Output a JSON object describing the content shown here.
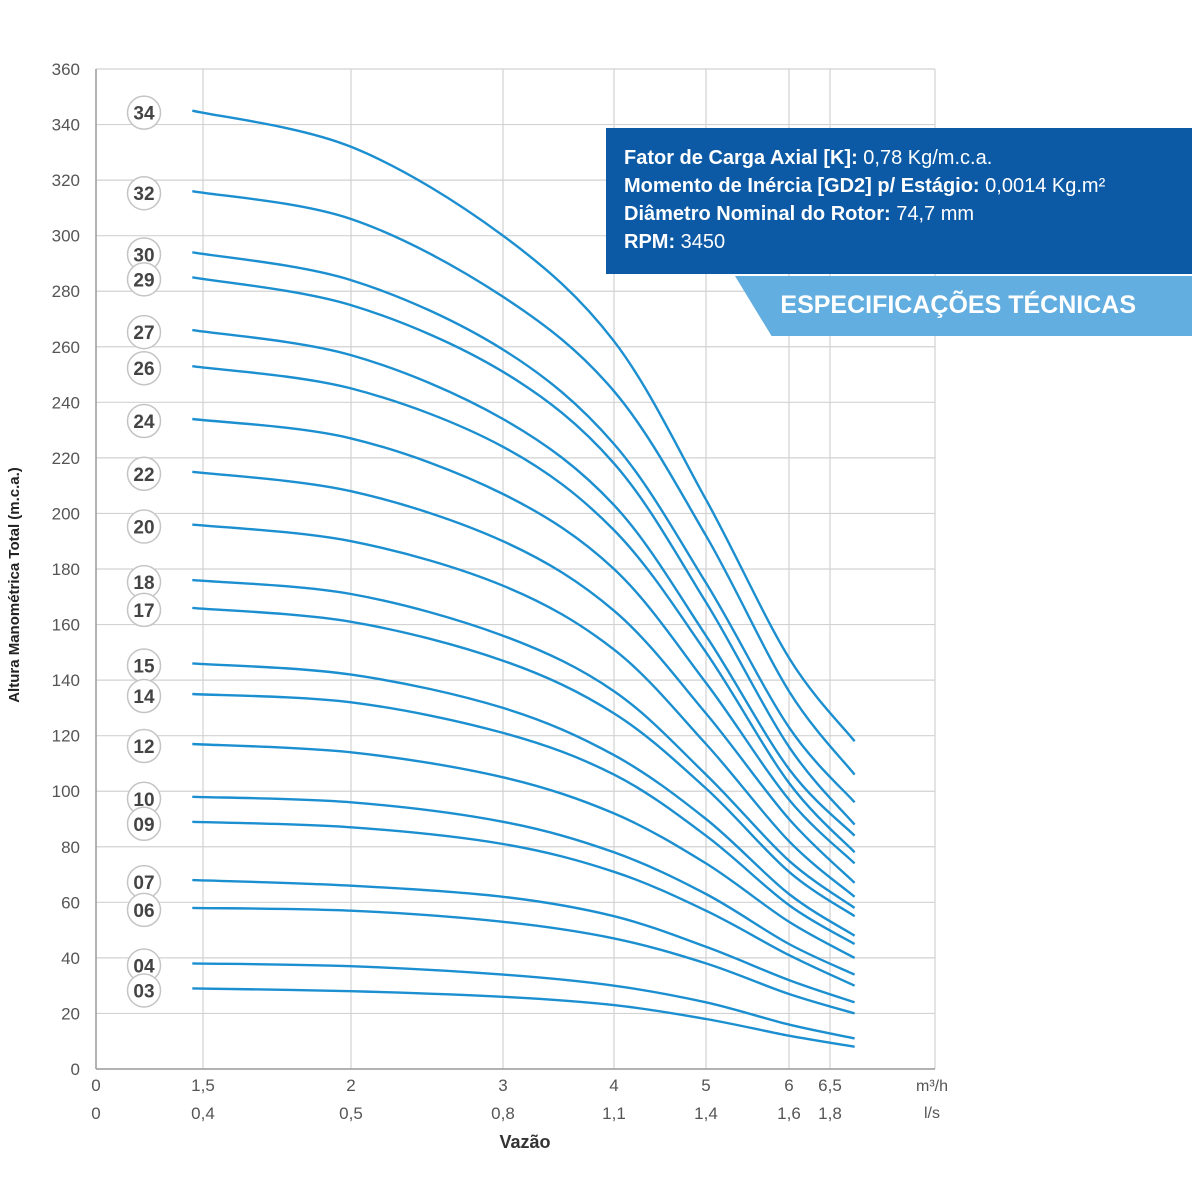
{
  "chart_data": {
    "type": "line",
    "title": "",
    "ylabel": "Altura Manométrica Total (m.c.a.)",
    "xlabel": "Vazão",
    "ylim": [
      0,
      360
    ],
    "y_ticks": [
      0,
      20,
      40,
      60,
      80,
      100,
      120,
      140,
      160,
      180,
      200,
      220,
      240,
      260,
      280,
      300,
      320,
      340,
      360
    ],
    "x_axis_m3h": {
      "unit": "m³/h",
      "ticks": [
        {
          "value": 0,
          "label": "0"
        },
        {
          "value": 1.5,
          "label": "1,5"
        },
        {
          "value": 2,
          "label": "2"
        },
        {
          "value": 3,
          "label": "3"
        },
        {
          "value": 4,
          "label": "4"
        },
        {
          "value": 5,
          "label": "5"
        },
        {
          "value": 6,
          "label": "6"
        },
        {
          "value": 6.5,
          "label": "6,5"
        }
      ]
    },
    "x_axis_ls": {
      "unit": "l/s",
      "ticks": [
        {
          "value": 0,
          "label": "0"
        },
        {
          "value": 0.4,
          "label": "0,4"
        },
        {
          "value": 0.5,
          "label": "0,5"
        },
        {
          "value": 0.8,
          "label": "0,8"
        },
        {
          "value": 1.1,
          "label": "1,1"
        },
        {
          "value": 1.4,
          "label": "1,4"
        },
        {
          "value": 1.6,
          "label": "1,6"
        },
        {
          "value": 1.8,
          "label": "1,8"
        }
      ]
    },
    "x": [
      1.35,
      2,
      3,
      4,
      5,
      6,
      6.8
    ],
    "series": [
      {
        "name": "34",
        "values": [
          345,
          332,
          300,
          262,
          205,
          148,
          118
        ]
      },
      {
        "name": "32",
        "values": [
          316,
          306,
          278,
          244,
          192,
          136,
          106
        ]
      },
      {
        "name": "30",
        "values": [
          294,
          284,
          259,
          225,
          175,
          123,
          96
        ]
      },
      {
        "name": "29",
        "values": [
          285,
          275,
          251,
          218,
          168,
          116,
          88
        ]
      },
      {
        "name": "27",
        "values": [
          266,
          257,
          234,
          203,
          156,
          108,
          84
        ]
      },
      {
        "name": "26",
        "values": [
          253,
          245,
          224,
          194,
          150,
          103,
          78
        ]
      },
      {
        "name": "24",
        "values": [
          234,
          227,
          207,
          180,
          139,
          97,
          74
        ]
      },
      {
        "name": "22",
        "values": [
          215,
          208,
          190,
          165,
          128,
          90,
          67
        ]
      },
      {
        "name": "20",
        "values": [
          196,
          190,
          174,
          151,
          117,
          82,
          62
        ]
      },
      {
        "name": "18",
        "values": [
          176,
          171,
          156,
          136,
          106,
          75,
          58
        ]
      },
      {
        "name": "17",
        "values": [
          166,
          161,
          147,
          128,
          101,
          71,
          55
        ]
      },
      {
        "name": "15",
        "values": [
          146,
          142,
          130,
          113,
          90,
          63,
          48
        ]
      },
      {
        "name": "14",
        "values": [
          135,
          132,
          121,
          106,
          84,
          59,
          45
        ]
      },
      {
        "name": "12",
        "values": [
          117,
          114,
          105,
          92,
          74,
          53,
          40
        ]
      },
      {
        "name": "10",
        "values": [
          98,
          96,
          89,
          78,
          63,
          45,
          34
        ]
      },
      {
        "name": "09",
        "values": [
          89,
          87,
          81,
          71,
          57,
          41,
          30
        ]
      },
      {
        "name": "07",
        "values": [
          68,
          66,
          62,
          55,
          44,
          32,
          24
        ]
      },
      {
        "name": "06",
        "values": [
          58,
          57,
          53,
          47,
          38,
          27,
          20
        ]
      },
      {
        "name": "04",
        "values": [
          38,
          37,
          34,
          30,
          24,
          16,
          11
        ]
      },
      {
        "name": "03",
        "values": [
          29,
          28,
          26,
          23,
          18,
          12,
          8
        ]
      }
    ],
    "grid": true,
    "color": "#1b8fd0",
    "stage_label_color": "#444444"
  },
  "specs": {
    "lines": [
      {
        "key": "Fator de Carga Axial [K]:",
        "value": " 0,78 Kg/m.c.a."
      },
      {
        "key": "Momento de Inércia [GD2] p/ Estágio:",
        "value": " 0,0014 Kg.m²"
      },
      {
        "key": "Diâmetro Nominal do Rotor:",
        "value": " 74,7 mm"
      },
      {
        "key": "RPM:",
        "value": " 3450"
      }
    ],
    "title": "ESPECIFICAÇÕES TÉCNICAS",
    "box_color": "#0c5aa6",
    "banner_color": "#62aee0"
  }
}
